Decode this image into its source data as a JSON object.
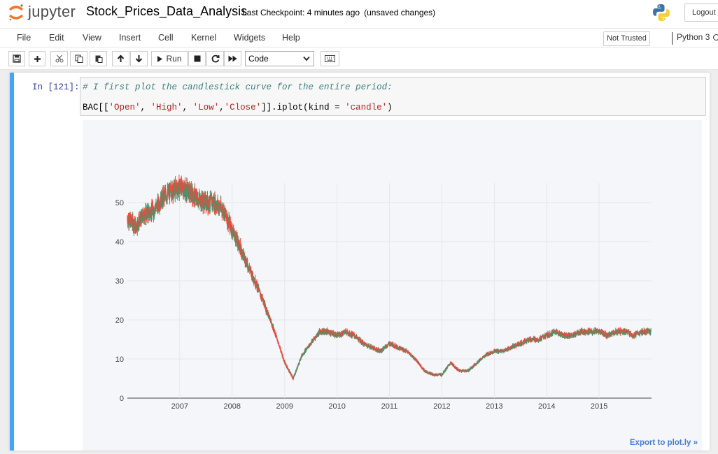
{
  "header": {
    "brand": "jupyter",
    "notebook_name": "Stock_Prices_Data_Analysis",
    "checkpoint": "Last Checkpoint: 4 minutes ago",
    "autosave_status": "(unsaved changes)",
    "logout_label": "Logout"
  },
  "menu": {
    "items": [
      "File",
      "Edit",
      "View",
      "Insert",
      "Cell",
      "Kernel",
      "Widgets",
      "Help"
    ],
    "trust_label": "Not Trusted",
    "kernel_label": "Python 3"
  },
  "toolbar": {
    "run_label": "Run",
    "cell_type": "Code",
    "icons": [
      "save-icon",
      "plus-icon",
      "cut-icon",
      "copy-icon",
      "paste-icon",
      "arrow-up-icon",
      "arrow-down-icon",
      "run-icon",
      "stop-icon",
      "restart-icon",
      "fast-forward-icon",
      "keyboard-icon"
    ]
  },
  "cell": {
    "prompt": "In [121]:",
    "comment": "# I first plot the candlestick curve for the entire period:",
    "code_prefix": "BAC[[",
    "code_str1": "'Open'",
    "code_sep1": ", ",
    "code_str2": "'High'",
    "code_sep2": ", ",
    "code_str3": "'Low'",
    "code_sep3": ",",
    "code_str4": "'Close'",
    "code_mid": "]].iplot(kind = ",
    "code_str5": "'candle'",
    "code_suffix": ")"
  },
  "output": {
    "export_label": "Export to plot.ly »"
  },
  "colors": {
    "increasing": "#3d9970",
    "decreasing": "#ff4136",
    "cell_selected_bar": "#42a5f5",
    "link": "#447bdc"
  },
  "chart_data": {
    "type": "candlestick",
    "title": "",
    "xlabel": "",
    "ylabel": "",
    "x_ticks": [
      "2007",
      "2008",
      "2009",
      "2010",
      "2011",
      "2012",
      "2013",
      "2014",
      "2015"
    ],
    "y_ticks": [
      0,
      10,
      20,
      30,
      40,
      50
    ],
    "xlim": [
      "2006-01-01",
      "2016-01-01"
    ],
    "ylim": [
      0,
      55
    ],
    "grid": true,
    "legend": "none",
    "series": [
      {
        "name": "",
        "x": [
          "2006-01",
          "2006-03",
          "2006-05",
          "2006-07",
          "2006-09",
          "2006-11",
          "2007-01",
          "2007-03",
          "2007-05",
          "2007-07",
          "2007-09",
          "2007-11",
          "2008-01",
          "2008-03",
          "2008-05",
          "2008-07",
          "2008-09",
          "2008-11",
          "2009-01",
          "2009-03",
          "2009-05",
          "2009-07",
          "2009-09",
          "2009-11",
          "2010-01",
          "2010-03",
          "2010-05",
          "2010-07",
          "2010-09",
          "2010-11",
          "2011-01",
          "2011-03",
          "2011-05",
          "2011-07",
          "2011-09",
          "2011-11",
          "2012-01",
          "2012-03",
          "2012-05",
          "2012-07",
          "2012-09",
          "2012-11",
          "2013-01",
          "2013-03",
          "2013-05",
          "2013-07",
          "2013-09",
          "2013-11",
          "2014-01",
          "2014-03",
          "2014-05",
          "2014-07",
          "2014-09",
          "2014-11",
          "2015-01",
          "2015-03",
          "2015-05",
          "2015-07",
          "2015-09",
          "2015-11"
        ],
        "close": [
          46,
          44,
          47,
          48,
          51,
          53,
          54,
          53,
          51,
          50,
          50,
          48,
          43,
          38,
          33,
          28,
          22,
          16,
          9,
          5,
          11,
          14,
          17,
          17,
          16,
          17,
          16,
          14,
          13,
          12,
          14,
          13,
          12,
          10,
          7,
          6,
          6,
          9,
          7,
          7,
          9,
          11,
          12,
          12,
          13,
          14,
          15,
          15,
          16,
          17,
          16,
          16,
          17,
          17,
          17,
          16,
          17,
          17,
          16,
          17
        ]
      }
    ]
  }
}
